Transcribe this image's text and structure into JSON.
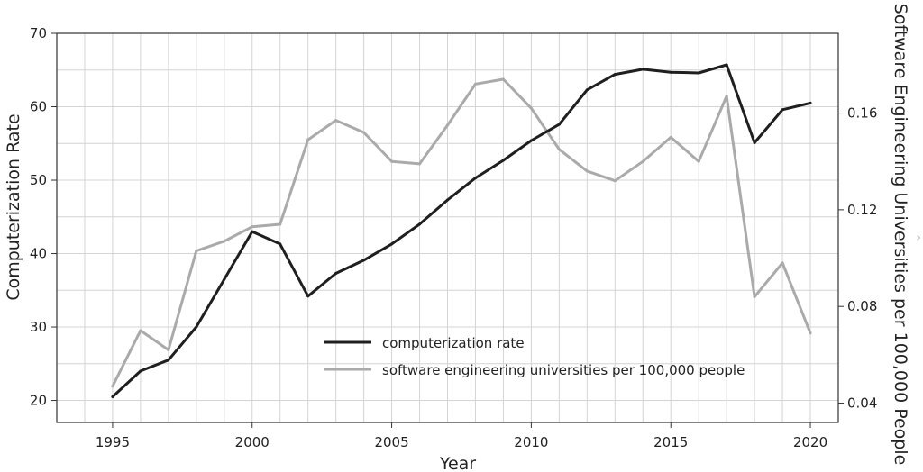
{
  "chart_data": {
    "type": "line",
    "xlabel": "Year",
    "ylabel_left": "Computerization Rate",
    "ylabel_right": "Software Engineering Universities per 100,000 People",
    "xlim": [
      1993,
      2021
    ],
    "ylim_left": [
      17,
      70
    ],
    "ylim_right": [
      0.032,
      0.193
    ],
    "x_ticks": [
      "1995",
      "2000",
      "2005",
      "2010",
      "2015",
      "2020"
    ],
    "y_ticks_left": [
      "20",
      "30",
      "40",
      "50",
      "60",
      "70"
    ],
    "y_ticks_right": [
      "0.04",
      "0.08",
      "0.12",
      "0.16"
    ],
    "grid": true,
    "legend_position": "bottom-center",
    "x": [
      1995,
      1996,
      1997,
      1998,
      1999,
      2000,
      2001,
      2002,
      2003,
      2004,
      2005,
      2006,
      2007,
      2008,
      2009,
      2010,
      2011,
      2012,
      2013,
      2014,
      2015,
      2016,
      2017,
      2018,
      2019,
      2020
    ],
    "series": [
      {
        "name": "computerization rate",
        "axis": "left",
        "color": "#1f1f1f",
        "values": [
          20.5,
          24.0,
          25.5,
          30.0,
          36.5,
          43.0,
          41.3,
          34.2,
          37.3,
          39.1,
          41.3,
          44.0,
          47.3,
          50.3,
          52.7,
          55.4,
          57.6,
          62.3,
          64.4,
          65.1,
          64.7,
          64.6,
          65.7,
          55.1,
          59.6,
          60.5
        ]
      },
      {
        "name": "software engineering universities per 100,000 people",
        "axis": "right",
        "color": "#aaaaaa",
        "values": [
          0.047,
          0.07,
          0.062,
          0.103,
          0.107,
          0.113,
          0.114,
          0.149,
          0.157,
          0.152,
          0.14,
          0.139,
          0.155,
          0.172,
          0.174,
          0.162,
          0.145,
          0.136,
          0.132,
          0.14,
          0.15,
          0.14,
          0.167,
          0.084,
          0.098,
          0.069
        ]
      }
    ]
  }
}
